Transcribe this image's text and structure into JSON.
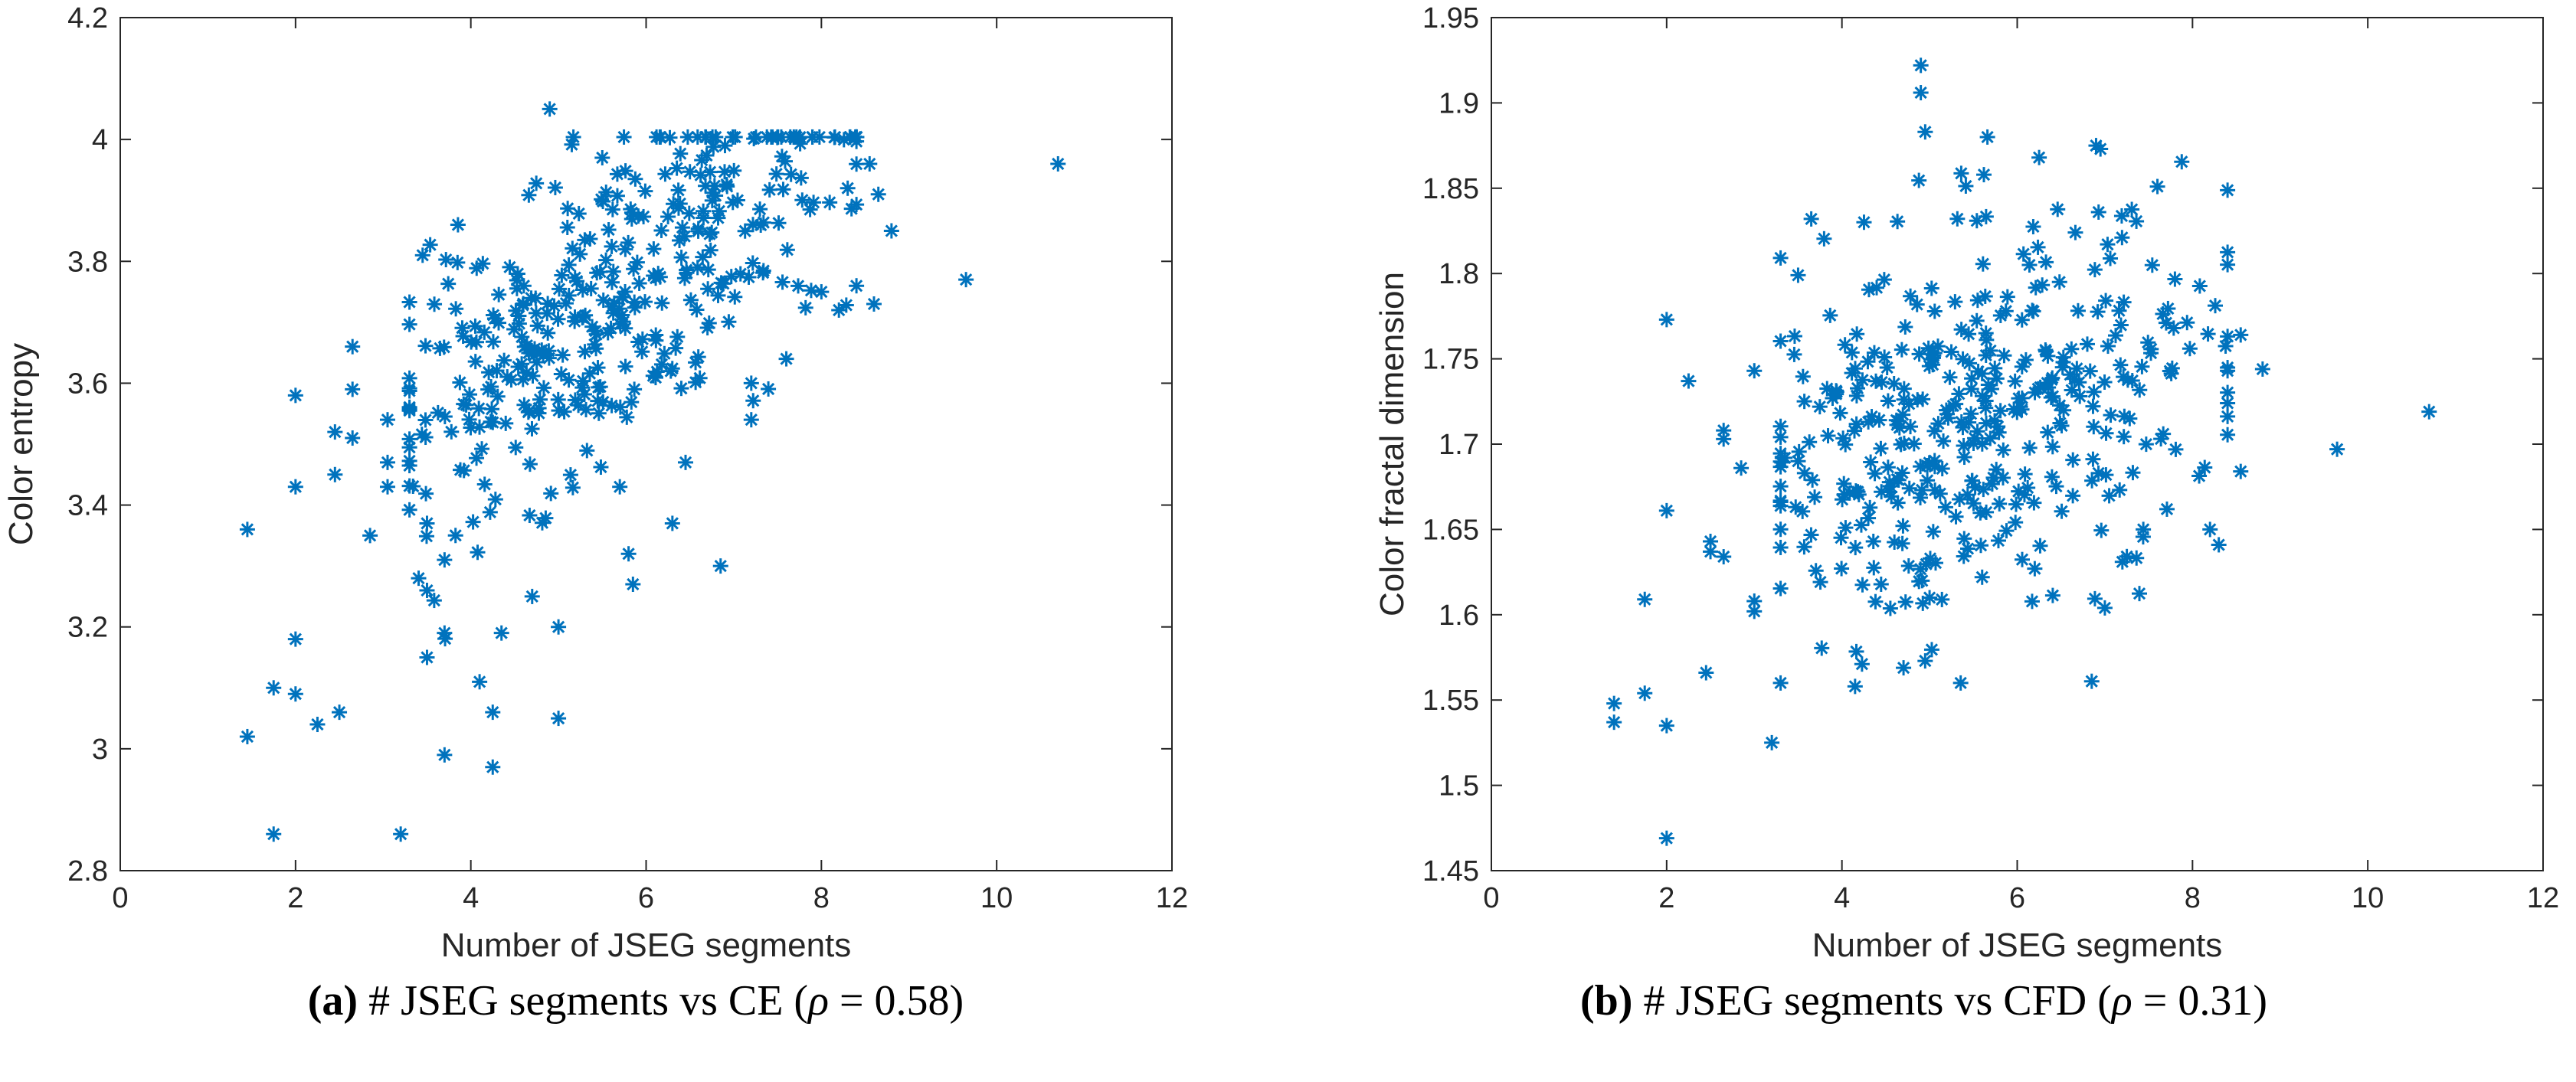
{
  "chart_data": [
    {
      "type": "scatter",
      "caption_label": "(a)",
      "caption_text": "# JSEG segments vs CE (",
      "caption_rho": "ρ",
      "caption_eq": " = 0.58)",
      "xlabel": "Number of JSEG segments",
      "ylabel": "Color entropy",
      "xlim": [
        0,
        12
      ],
      "ylim": [
        2.8,
        4.2
      ],
      "xticks": [
        0,
        2,
        4,
        6,
        8,
        10,
        12
      ],
      "yticks": [
        2.8,
        3,
        3.2,
        3.4,
        3.6,
        3.8,
        4,
        4.2
      ],
      "marker": "asterisk",
      "color": "#0072BD",
      "seed": 11,
      "n_random": 400,
      "model": {
        "slope": 0.1,
        "intercept": 3.18,
        "sd": 0.13
      },
      "points": [
        [
          1.45,
          3.36
        ],
        [
          1.45,
          3.02
        ],
        [
          1.75,
          2.86
        ],
        [
          1.75,
          3.1
        ],
        [
          2.0,
          3.58
        ],
        [
          2.0,
          3.43
        ],
        [
          2.0,
          3.18
        ],
        [
          2.0,
          3.09
        ],
        [
          2.25,
          3.04
        ],
        [
          2.45,
          3.52
        ],
        [
          2.45,
          3.45
        ],
        [
          2.5,
          3.06
        ],
        [
          2.65,
          3.66
        ],
        [
          2.65,
          3.59
        ],
        [
          2.65,
          3.51
        ],
        [
          2.85,
          3.35
        ],
        [
          3.05,
          3.54
        ],
        [
          3.05,
          3.47
        ],
        [
          3.05,
          3.43
        ],
        [
          3.2,
          2.86
        ],
        [
          3.45,
          3.81
        ],
        [
          3.5,
          3.26
        ],
        [
          3.5,
          3.15
        ],
        [
          3.5,
          3.37
        ],
        [
          3.7,
          3.31
        ],
        [
          3.7,
          3.19
        ],
        [
          3.7,
          2.99
        ],
        [
          4.1,
          3.11
        ],
        [
          4.25,
          3.06
        ],
        [
          4.25,
          2.97
        ],
        [
          4.35,
          3.19
        ],
        [
          4.7,
          3.25
        ],
        [
          4.9,
          4.05
        ],
        [
          5.0,
          3.2
        ],
        [
          5.0,
          3.05
        ],
        [
          5.5,
          3.97
        ],
        [
          5.7,
          3.43
        ],
        [
          5.8,
          3.32
        ],
        [
          5.85,
          3.27
        ],
        [
          6.3,
          3.37
        ],
        [
          6.45,
          3.47
        ],
        [
          6.85,
          3.3
        ],
        [
          6.9,
          3.99
        ],
        [
          7.2,
          3.54
        ],
        [
          7.2,
          3.6
        ],
        [
          7.6,
          3.64
        ],
        [
          8.0,
          3.75
        ],
        [
          8.2,
          3.72
        ],
        [
          8.3,
          3.92
        ],
        [
          8.55,
          3.96
        ],
        [
          8.6,
          3.73
        ],
        [
          8.65,
          3.91
        ],
        [
          8.8,
          3.85
        ],
        [
          9.65,
          3.77
        ],
        [
          10.7,
          3.96
        ]
      ]
    },
    {
      "type": "scatter",
      "caption_label": "(b)",
      "caption_text": "# JSEG segments vs CFD (",
      "caption_rho": "ρ",
      "caption_eq": " = 0.31)",
      "xlabel": "Number of JSEG segments",
      "ylabel": "Color fractal dimension",
      "xlim": [
        0,
        12
      ],
      "ylim": [
        1.45,
        1.95
      ],
      "xticks": [
        0,
        2,
        4,
        6,
        8,
        10,
        12
      ],
      "yticks": [
        1.45,
        1.5,
        1.55,
        1.6,
        1.65,
        1.7,
        1.75,
        1.8,
        1.85,
        1.9,
        1.95
      ],
      "marker": "asterisk",
      "color": "#0072BD",
      "seed": 29,
      "n_random": 400,
      "model": {
        "slope": 0.012,
        "intercept": 1.652,
        "sd": 0.055
      },
      "points": [
        [
          1.4,
          1.548
        ],
        [
          1.4,
          1.537
        ],
        [
          1.75,
          1.609
        ],
        [
          1.75,
          1.554
        ],
        [
          2.0,
          1.773
        ],
        [
          2.0,
          1.661
        ],
        [
          2.0,
          1.535
        ],
        [
          2.0,
          1.469
        ],
        [
          2.25,
          1.737
        ],
        [
          2.45,
          1.566
        ],
        [
          2.5,
          1.643
        ],
        [
          2.5,
          1.637
        ],
        [
          2.65,
          1.708
        ],
        [
          2.65,
          1.703
        ],
        [
          2.65,
          1.634
        ],
        [
          2.85,
          1.686
        ],
        [
          3.0,
          1.743
        ],
        [
          3.0,
          1.608
        ],
        [
          3.0,
          1.602
        ],
        [
          3.2,
          1.525
        ],
        [
          3.35,
          1.692
        ],
        [
          3.5,
          1.799
        ],
        [
          3.5,
          1.69
        ],
        [
          3.65,
          1.832
        ],
        [
          4.15,
          1.558
        ],
        [
          4.9,
          1.922
        ],
        [
          4.9,
          1.906
        ],
        [
          4.95,
          1.883
        ],
        [
          5.0,
          1.61
        ],
        [
          5.6,
          1.622
        ],
        [
          6.2,
          1.627
        ],
        [
          6.25,
          1.868
        ],
        [
          6.85,
          1.561
        ],
        [
          6.9,
          1.875
        ],
        [
          6.95,
          1.873
        ],
        [
          7.0,
          1.604
        ],
        [
          7.2,
          1.631
        ],
        [
          7.6,
          1.851
        ],
        [
          8.2,
          1.65
        ],
        [
          8.3,
          1.641
        ],
        [
          8.55,
          1.684
        ],
        [
          8.55,
          1.764
        ],
        [
          8.8,
          1.744
        ],
        [
          9.65,
          1.697
        ],
        [
          10.7,
          1.719
        ]
      ]
    }
  ]
}
